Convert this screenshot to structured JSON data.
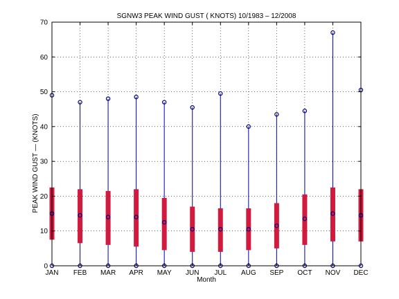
{
  "chart_data": {
    "type": "box",
    "title": "SGNW3  PEAK WIND GUST ( KNOTS) 10/1983 – 12/2008",
    "xlabel": "Month",
    "ylabel": "PEAK WIND GUST  —  (KNOTS)",
    "ylim": [
      0,
      70
    ],
    "yticks": [
      0,
      10,
      20,
      30,
      40,
      50,
      60,
      70
    ],
    "grid": true,
    "categories": [
      "JAN",
      "FEB",
      "MAR",
      "APR",
      "MAY",
      "JUN",
      "JUL",
      "AUG",
      "SEP",
      "OCT",
      "NOV",
      "DEC"
    ],
    "series": [
      {
        "min": [
          0,
          0,
          0,
          0,
          0,
          0,
          0,
          0,
          0,
          0,
          0,
          0
        ],
        "q1": [
          7.5,
          6.5,
          6,
          5.5,
          4.5,
          4,
          4,
          4.5,
          5,
          6,
          7,
          7
        ],
        "median": [
          15,
          14.5,
          14,
          14,
          12.5,
          10.5,
          10.5,
          10.5,
          11.5,
          13.5,
          15,
          14.5
        ],
        "q3": [
          22.5,
          22,
          21.5,
          22,
          19.5,
          17,
          16.5,
          16.5,
          18,
          20.5,
          22.5,
          22
        ],
        "max": [
          49,
          47,
          48,
          48.5,
          47,
          45.5,
          49.5,
          40,
          43.5,
          44.5,
          67,
          50.5
        ]
      }
    ],
    "colors": {
      "whisker": "#0000b3",
      "box": "#d11a3d",
      "marker": "#00007a",
      "grid": "#000000"
    }
  }
}
